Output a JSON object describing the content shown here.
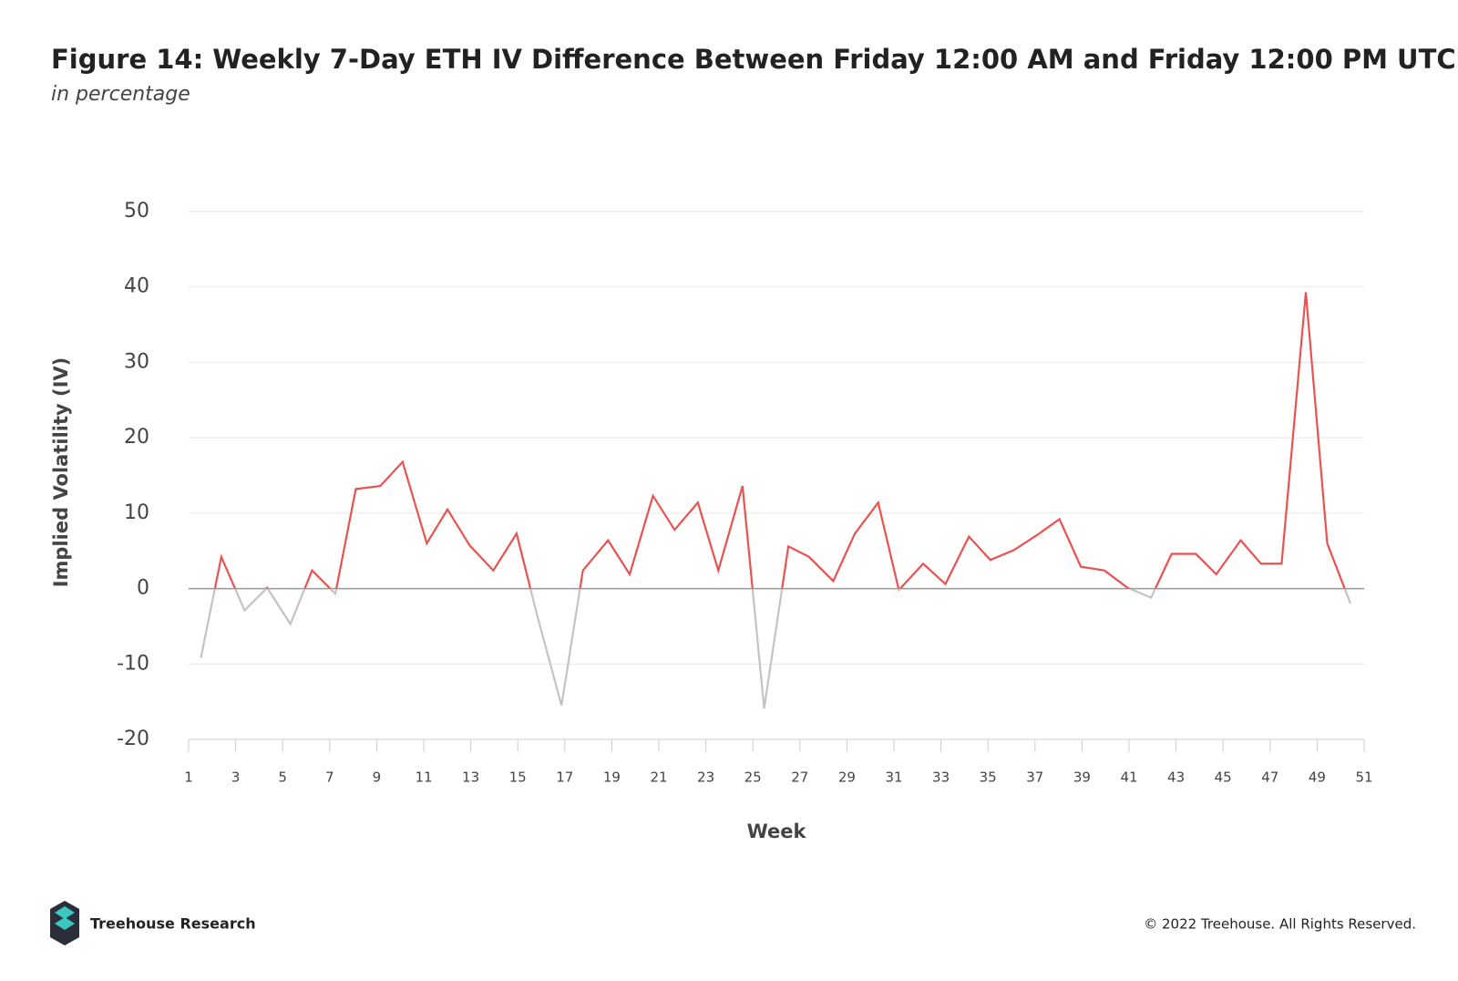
{
  "chart_data": {
    "type": "line",
    "title": "Figure 14: Weekly 7-Day ETH IV Difference Between Friday 12:00 AM and Friday 12:00 PM UTC",
    "subtitle": "in percentage",
    "y_label": "Implied Volatility (IV)",
    "x_label": "Week",
    "x": [
      1.52,
      2.39,
      3.38,
      4.34,
      5.33,
      6.25,
      7.24,
      8.11,
      9.15,
      10.1,
      11.13,
      12.01,
      12.96,
      13.96,
      14.95,
      15.82,
      16.86,
      17.77,
      18.84,
      19.76,
      20.75,
      21.67,
      22.66,
      23.53,
      24.56,
      25.48,
      26.51,
      27.39,
      28.42,
      29.34,
      30.33,
      31.21,
      32.24,
      33.19,
      34.19,
      35.1,
      36.1,
      37.09,
      38.04,
      38.95,
      39.95,
      40.94,
      41.94,
      42.81,
      43.84,
      44.71,
      45.75,
      46.61,
      47.49,
      48.52,
      49.43,
      50.42
    ],
    "values": [
      -9.2,
      4.2,
      -2.9,
      0.1,
      -4.7,
      2.4,
      -0.7,
      13.2,
      13.6,
      16.8,
      6.0,
      10.5,
      5.7,
      2.4,
      7.3,
      -3.5,
      -15.5,
      2.4,
      6.4,
      1.9,
      12.3,
      7.8,
      11.4,
      2.4,
      13.6,
      -15.9,
      5.6,
      4.2,
      1.0,
      7.3,
      11.4,
      -0.2,
      3.3,
      0.6,
      6.9,
      3.8,
      5.1,
      7.1,
      9.2,
      2.9,
      2.4,
      0.1,
      -1.2,
      4.6,
      4.6,
      1.9,
      6.4,
      3.3,
      3.3,
      39.3,
      6.0,
      -2.0
    ],
    "color": "#e8524f",
    "negative_color": "#c3c3c3",
    "xlim": [
      1,
      51
    ],
    "xticks": [
      1,
      3,
      5,
      7,
      9,
      11,
      13,
      15,
      17,
      19,
      21,
      23,
      25,
      27,
      29,
      31,
      33,
      35,
      37,
      39,
      41,
      43,
      45,
      47,
      49,
      51
    ],
    "ylim": [
      -20,
      50
    ],
    "yticks": [
      -20,
      -10,
      0,
      10,
      20,
      30,
      40,
      50
    ],
    "grid": true
  },
  "footer": {
    "brand": "Treehouse Research",
    "copyright": "© 2022 Treehouse. All Rights Reserved."
  }
}
